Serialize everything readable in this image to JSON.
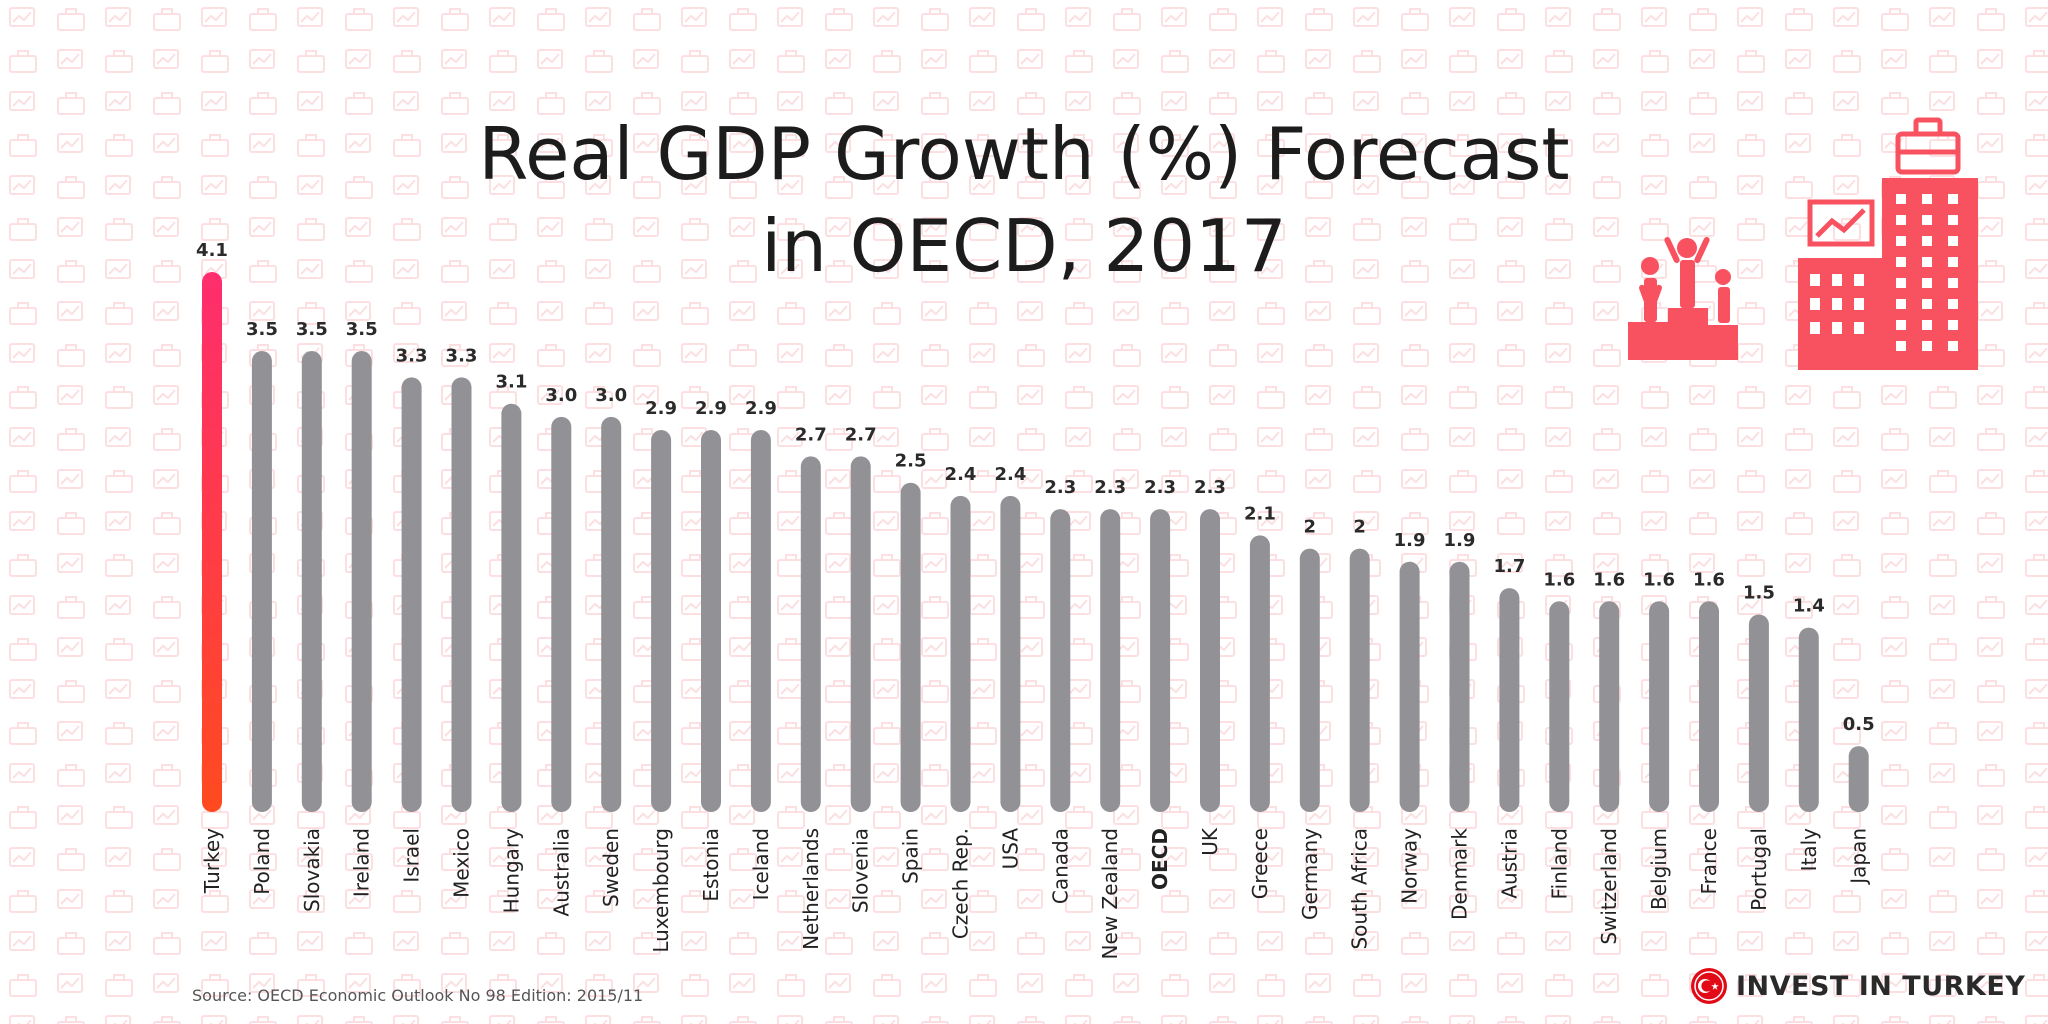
{
  "title_line1": "Real GDP Growth (%) Forecast",
  "title_line2": "in OECD, 2017",
  "source": "Source: OECD Economic Outlook No 98 Edition:  2015/11",
  "brand": "INVEST IN TURKEY",
  "colors": {
    "highlight_top": "#ff2d6e",
    "highlight_bottom": "#ff4a1f",
    "bar": "#929196",
    "accent": "#f8515f"
  },
  "illustration_icons": [
    "podium-icon",
    "office-building-icon",
    "briefcase-icon",
    "growth-chart-icon"
  ],
  "chart_data": {
    "type": "bar",
    "title": "Real GDP Growth (%) Forecast in OECD, 2017",
    "xlabel": "",
    "ylabel": "",
    "ylim": [
      0,
      4.1
    ],
    "grid": false,
    "highlight": "Turkey",
    "bold_label": "OECD",
    "categories": [
      "Turkey",
      "Poland",
      "Slovakia",
      "Ireland",
      "Israel",
      "Mexico",
      "Hungary",
      "Australia",
      "Sweden",
      "Luxembourg",
      "Estonia",
      "Iceland",
      "Netherlands",
      "Slovenia",
      "Spain",
      "Czech Rep.",
      "USA",
      "Canada",
      "New Zealand",
      "OECD",
      "UK",
      "Greece",
      "Germany",
      "South Africa",
      "Norway",
      "Denmark",
      "Austria",
      "Finland",
      "Switzerland",
      "Belgium",
      "France",
      "Portugal",
      "Italy",
      "Japan"
    ],
    "values": [
      4.1,
      3.5,
      3.5,
      3.5,
      3.3,
      3.3,
      3.1,
      3.0,
      3.0,
      2.9,
      2.9,
      2.9,
      2.7,
      2.7,
      2.5,
      2.4,
      2.4,
      2.3,
      2.3,
      2.3,
      2.3,
      2.1,
      2,
      2,
      1.9,
      1.9,
      1.7,
      1.6,
      1.6,
      1.6,
      1.6,
      1.5,
      1.4,
      0.5
    ],
    "value_labels": [
      "4.1",
      "3.5",
      "3.5",
      "3.5",
      "3.3",
      "3.3",
      "3.1",
      "3.0",
      "3.0",
      "2.9",
      "2.9",
      "2.9",
      "2.7",
      "2.7",
      "2.5",
      "2.4",
      "2.4",
      "2.3",
      "2.3",
      "2.3",
      "2.3",
      "2.1",
      "2",
      "2",
      "1.9",
      "1.9",
      "1.7",
      "1.6",
      "1.6",
      "1.6",
      "1.6",
      "1.5",
      "1.4",
      "0.5"
    ]
  }
}
